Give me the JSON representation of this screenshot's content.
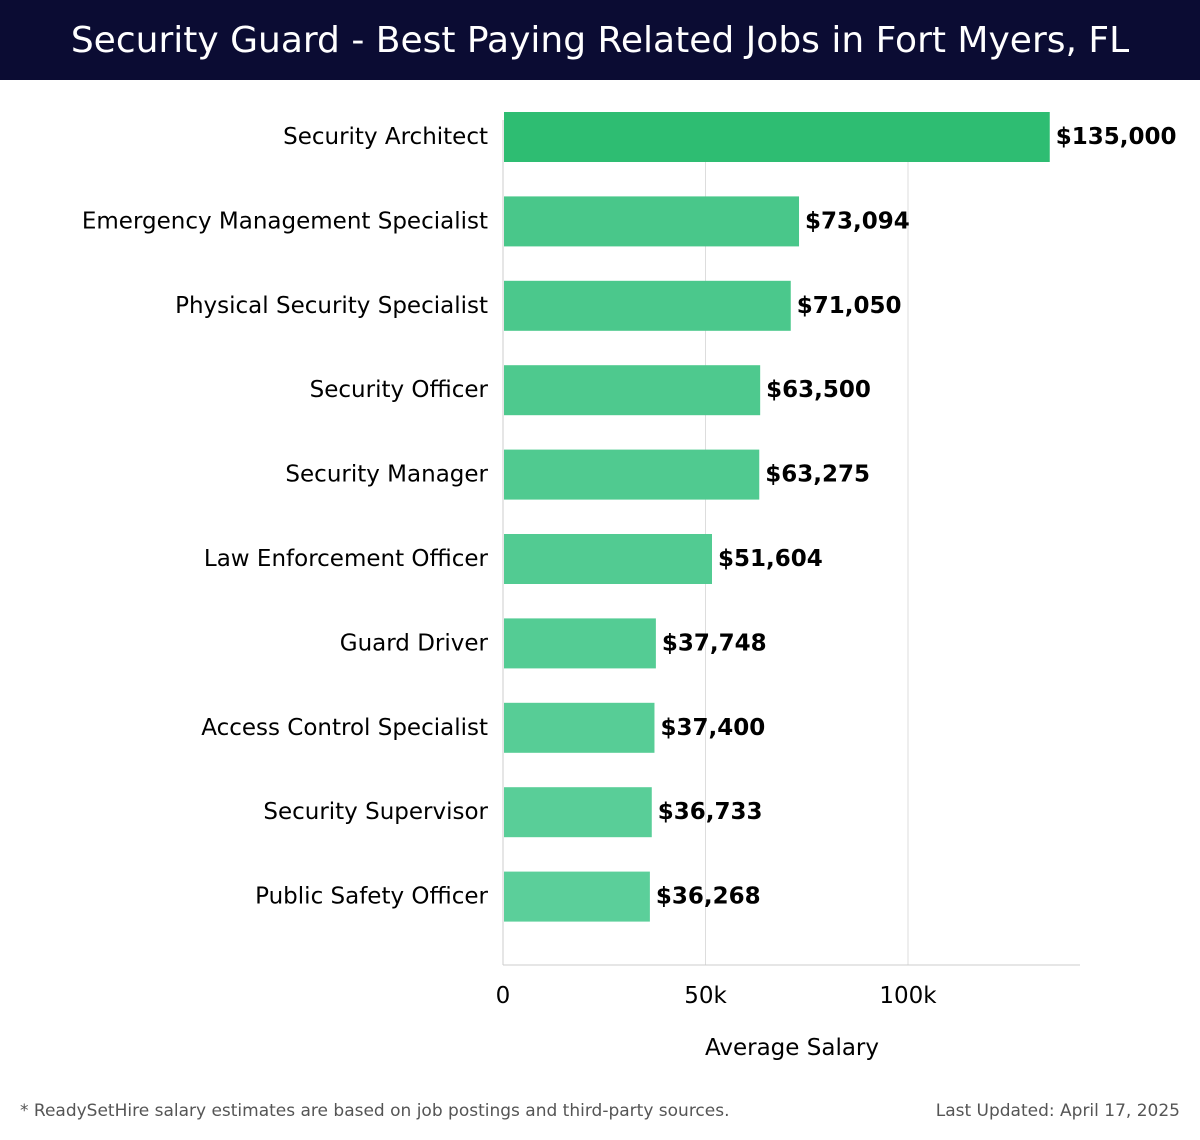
{
  "header": {
    "title": "Security Guard - Best Paying Related Jobs in Fort Myers, FL"
  },
  "chart_data": {
    "type": "bar",
    "orientation": "horizontal",
    "categories": [
      "Security Architect",
      "Emergency Management Specialist",
      "Physical Security Specialist",
      "Security Officer",
      "Security Manager",
      "Law Enforcement Officer",
      "Guard Driver",
      "Access Control Specialist",
      "Security Supervisor",
      "Public Safety Officer"
    ],
    "values": [
      135000,
      73094,
      71050,
      63500,
      63275,
      51604,
      37748,
      37400,
      36733,
      36268
    ],
    "value_labels": [
      "$135,000",
      "$73,094",
      "$71,050",
      "$63,500",
      "$63,275",
      "$51,604",
      "$37,748",
      "$37,400",
      "$36,733",
      "$36,268"
    ],
    "xlabel": "Average Salary",
    "ylabel": "",
    "xlim": [
      0,
      142000
    ],
    "x_ticks": [
      0,
      50000,
      100000
    ],
    "x_tick_labels": [
      "0",
      "50k",
      "100k"
    ],
    "grid": "vertical",
    "legend": "none",
    "colors": {
      "top_bar": "#2ebd72",
      "bar_start": "#49c78a",
      "bar_end": "#5bcf9a",
      "grid": "#dddddd",
      "axis": "#cccccc"
    }
  },
  "footer": {
    "note": "* ReadySetHire salary estimates are based on job postings and third-party sources.",
    "updated": "Last Updated: April 17, 2025"
  }
}
